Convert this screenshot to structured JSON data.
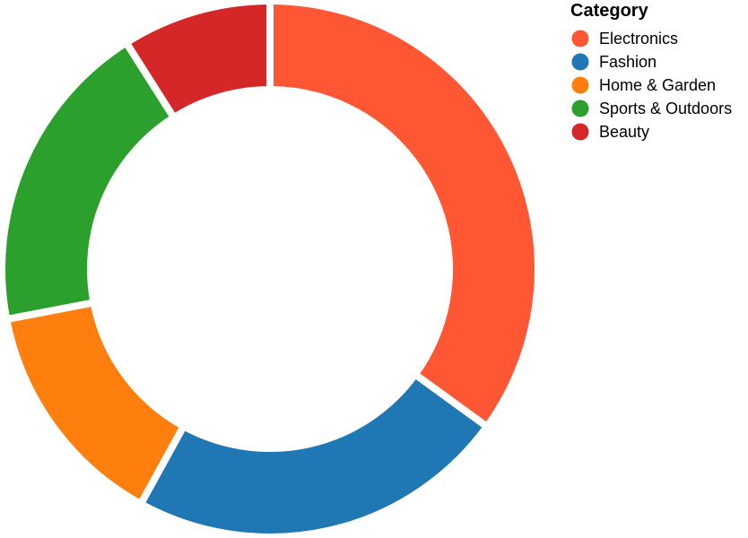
{
  "chart_data": {
    "type": "pie",
    "variant": "donut",
    "legend": {
      "title": "Category",
      "placement": "top-right"
    },
    "categories": [
      "Electronics",
      "Fashion",
      "Home & Garden",
      "Sports & Outdoors",
      "Beauty"
    ],
    "values": [
      35,
      23,
      14,
      19,
      9
    ],
    "colors": [
      "#ff5733",
      "#1f77b4",
      "#ff7f0e",
      "#2ca02c",
      "#d62728"
    ],
    "title": "",
    "xlabel": "",
    "ylabel": ""
  }
}
